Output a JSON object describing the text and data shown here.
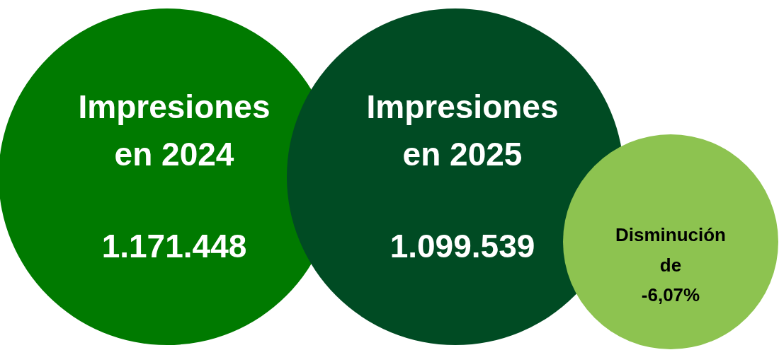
{
  "chart_data": {
    "type": "other",
    "categories": [
      "Impresiones en 2024",
      "Impresiones en 2025",
      "Disminución de"
    ],
    "values": [
      1171448,
      1099539,
      -6.07
    ],
    "value_labels": [
      "1.171.448",
      "1.099.539",
      "-6,07%"
    ],
    "colors": [
      "#007a00",
      "#004b23",
      "#8dc350"
    ]
  }
}
